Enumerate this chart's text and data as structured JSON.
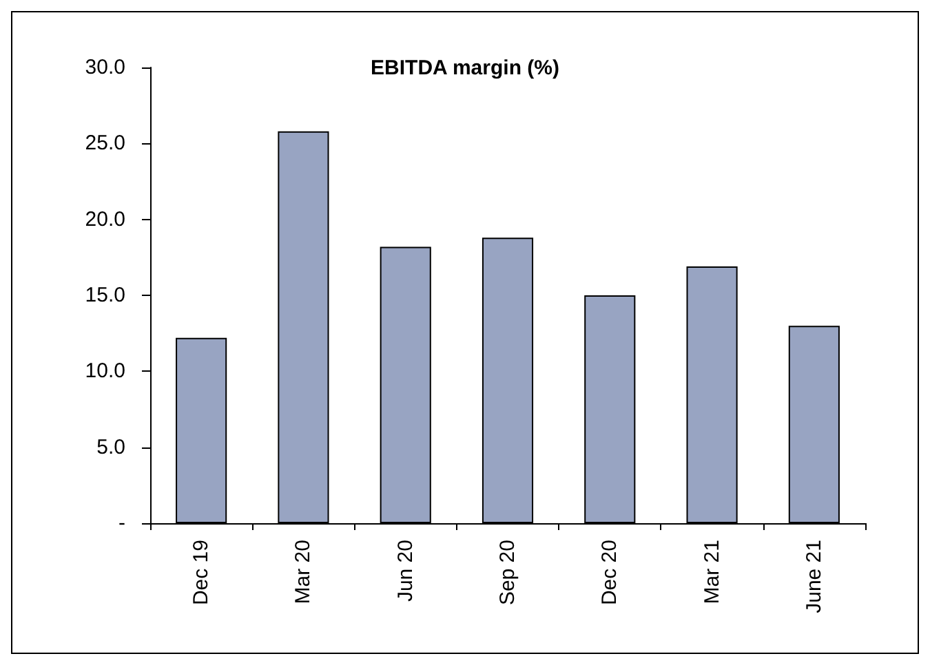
{
  "chart_data": {
    "type": "bar",
    "title": "EBITDA margin (%)",
    "categories": [
      "Dec 19",
      "Mar 20",
      "Jun 20",
      "Sep 20",
      "Dec 20",
      "Mar 21",
      "June 21"
    ],
    "values": [
      12.2,
      25.8,
      18.2,
      18.8,
      15.0,
      16.9,
      13.0
    ],
    "color": "#98a4c2",
    "ylim": [
      0,
      30
    ],
    "yticks": [
      {
        "value": 0,
        "label": "-"
      },
      {
        "value": 5,
        "label": "5.0"
      },
      {
        "value": 10,
        "label": "10.0"
      },
      {
        "value": 15,
        "label": "15.0"
      },
      {
        "value": 20,
        "label": "20.0"
      },
      {
        "value": 25,
        "label": "25.0"
      },
      {
        "value": 30,
        "label": "30.0"
      }
    ],
    "grid": false
  }
}
